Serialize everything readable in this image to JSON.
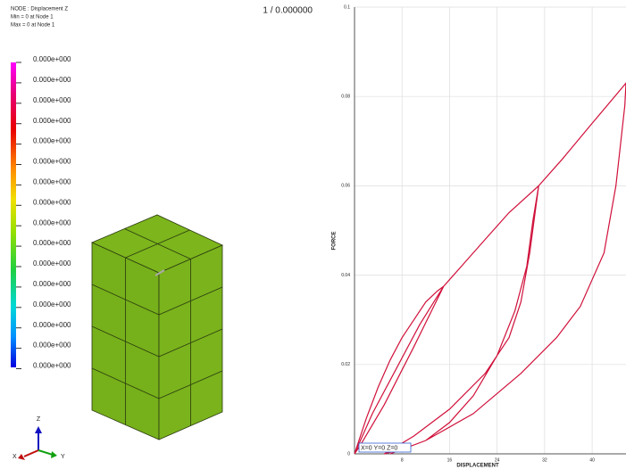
{
  "header": {
    "lines": [
      "NODE : Displacement Z",
      "Min = 0 at Node 1",
      "Max = 0 at Node 1"
    ],
    "step": "1 / 0.000000"
  },
  "legend": {
    "labels": [
      "0.000e+000",
      "0.000e+000",
      "0.000e+000",
      "0.000e+000",
      "0.000e+000",
      "0.000e+000",
      "0.000e+000",
      "0.000e+000",
      "0.000e+000",
      "0.000e+000",
      "0.000e+000",
      "0.000e+000",
      "0.000e+000",
      "0.000e+000",
      "0.000e+000",
      "0.000e+000"
    ]
  },
  "triad": {
    "z": "Z",
    "x": "X",
    "y": "Y"
  },
  "chart_data": {
    "type": "line",
    "color": "#d0103a",
    "x": [
      0,
      2,
      4,
      6,
      8,
      10,
      12,
      14,
      15,
      10,
      5,
      1,
      0,
      3,
      7,
      11,
      15,
      18,
      22,
      26,
      31,
      30,
      29,
      27,
      24,
      20,
      16,
      12,
      8,
      5,
      10,
      16,
      22,
      26,
      28,
      29.5,
      31,
      35,
      40,
      45.7,
      45.5,
      44,
      42,
      38,
      34,
      28,
      20,
      12,
      6
    ],
    "values": [
      0,
      0.008,
      0.015,
      0.021,
      0.026,
      0.03,
      0.034,
      0.0365,
      0.0375,
      0.024,
      0.011,
      0.002,
      0,
      0.009,
      0.019,
      0.029,
      0.0375,
      0.042,
      0.048,
      0.054,
      0.06,
      0.052,
      0.042,
      0.032,
      0.022,
      0.013,
      0.007,
      0.003,
      0.001,
      0,
      0.004,
      0.01,
      0.018,
      0.026,
      0.034,
      0.045,
      0.06,
      0.066,
      0.074,
      0.083,
      0.078,
      0.06,
      0.045,
      0.033,
      0.026,
      0.018,
      0.009,
      0.003,
      0
    ],
    "xlim": [
      0,
      45.7
    ],
    "ylim": [
      0,
      0.1
    ],
    "xticks": [
      8,
      16,
      24,
      32,
      40
    ],
    "yticks": [
      0,
      0.02,
      0.04,
      0.06,
      0.08,
      0.1
    ],
    "grid": true,
    "x_label": "DISPLACEMENT",
    "y_label": "FORCE",
    "annotation": "X=0 Y=0 Z=0"
  }
}
